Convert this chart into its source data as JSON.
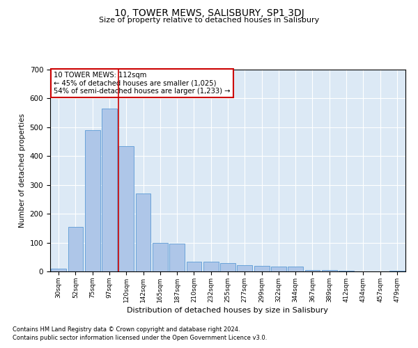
{
  "title": "10, TOWER MEWS, SALISBURY, SP1 3DJ",
  "subtitle": "Size of property relative to detached houses in Salisbury",
  "xlabel": "Distribution of detached houses by size in Salisbury",
  "ylabel": "Number of detached properties",
  "footnote1": "Contains HM Land Registry data © Crown copyright and database right 2024.",
  "footnote2": "Contains public sector information licensed under the Open Government Licence v3.0.",
  "categories": [
    "30sqm",
    "52sqm",
    "75sqm",
    "97sqm",
    "120sqm",
    "142sqm",
    "165sqm",
    "187sqm",
    "210sqm",
    "232sqm",
    "255sqm",
    "277sqm",
    "299sqm",
    "322sqm",
    "344sqm",
    "367sqm",
    "389sqm",
    "412sqm",
    "434sqm",
    "457sqm",
    "479sqm"
  ],
  "values": [
    10,
    155,
    490,
    565,
    435,
    270,
    100,
    97,
    33,
    35,
    30,
    22,
    20,
    18,
    16,
    5,
    5,
    3,
    1,
    0,
    2
  ],
  "bar_color": "#aec6e8",
  "bar_edge_color": "#5b9bd5",
  "highlight_line_index": 4,
  "annotation_text": "10 TOWER MEWS: 112sqm\n← 45% of detached houses are smaller (1,025)\n54% of semi-detached houses are larger (1,233) →",
  "annotation_box_facecolor": "#ffffff",
  "annotation_box_edgecolor": "#cc0000",
  "annotation_text_color": "#000000",
  "highlight_line_color": "#cc0000",
  "bg_color": "#dce9f5",
  "grid_color": "#ffffff",
  "ylim": [
    0,
    700
  ],
  "yticks": [
    0,
    100,
    200,
    300,
    400,
    500,
    600,
    700
  ]
}
